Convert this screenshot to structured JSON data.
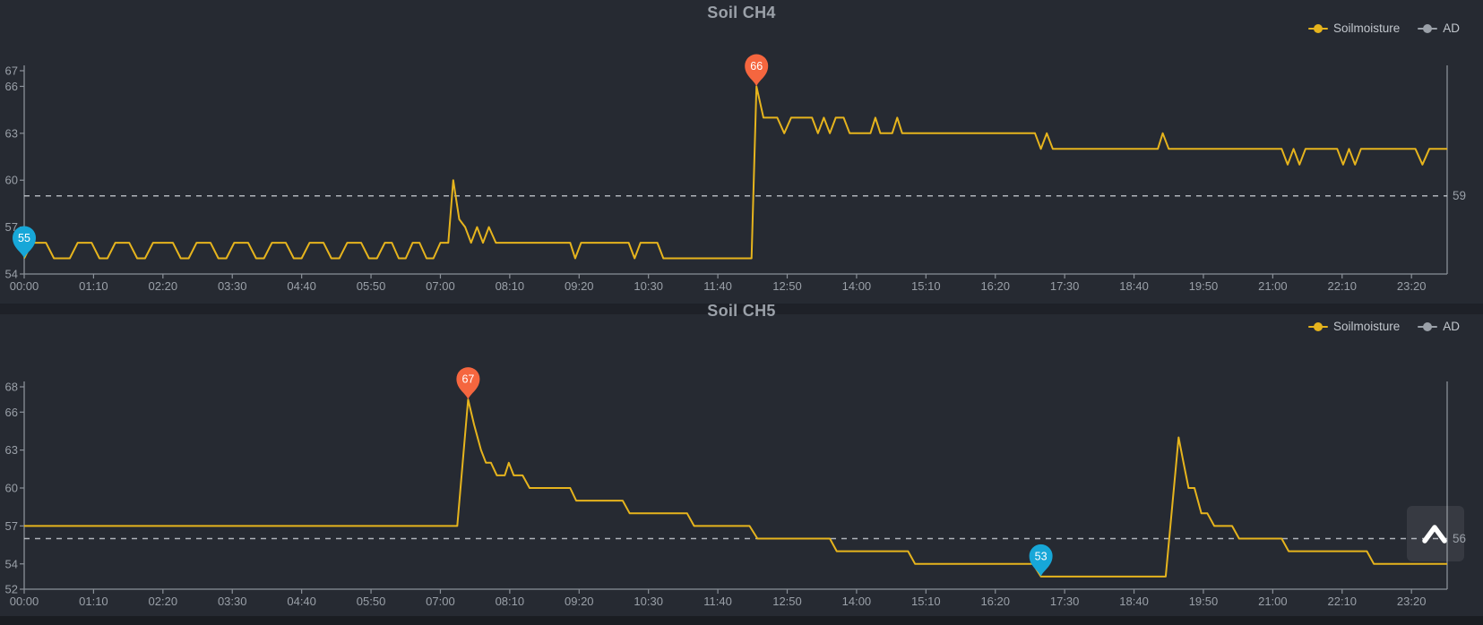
{
  "page": {
    "background": "#262a32",
    "gap_strip_color": "#1e2128",
    "bottom_bar_color": "#1a1d22"
  },
  "legend": {
    "items": [
      {
        "label": "Soilmoisture",
        "color": "#e6b41d"
      },
      {
        "label": "AD",
        "color": "#9aa0a8"
      }
    ]
  },
  "colors": {
    "series_line": "#e6b41d",
    "axis_line": "#8a9098",
    "tick_label": "#9aa0a8",
    "average_line": "#c9cdd3",
    "max_pin": "#f5663f",
    "min_pin": "#17a7d8",
    "pin_text": "#ffffff",
    "button_chevron": "#ffffff"
  },
  "scroll_top_button": {
    "icon": "chevron-up"
  },
  "chart_data": [
    {
      "type": "line",
      "title": "Soil CH4",
      "series_name": "Soilmoisture",
      "secondary_series_name": "AD",
      "y_ticks": [
        67,
        66,
        63,
        60,
        57,
        54
      ],
      "y_min": 54,
      "y_max": 67,
      "x_tick_labels": [
        "00:00",
        "01:10",
        "02:20",
        "03:30",
        "04:40",
        "05:50",
        "07:00",
        "08:10",
        "09:20",
        "10:30",
        "11:40",
        "12:50",
        "14:00",
        "15:10",
        "16:20",
        "17:30",
        "18:40",
        "19:50",
        "21:00",
        "22:10",
        "23:20"
      ],
      "x_tick_interval_minutes": 70,
      "average_line": {
        "value": 59,
        "label": "59"
      },
      "max_marker": {
        "minute": 739,
        "value": 66,
        "label": "66"
      },
      "min_marker": {
        "minute": 0,
        "value": 55,
        "label": "55"
      },
      "series_minutes_values": [
        [
          0,
          55
        ],
        [
          8,
          56
        ],
        [
          22,
          56
        ],
        [
          30,
          55
        ],
        [
          46,
          55
        ],
        [
          54,
          56
        ],
        [
          68,
          56
        ],
        [
          76,
          55
        ],
        [
          84,
          55
        ],
        [
          92,
          56
        ],
        [
          106,
          56
        ],
        [
          114,
          55
        ],
        [
          122,
          55
        ],
        [
          130,
          56
        ],
        [
          150,
          56
        ],
        [
          158,
          55
        ],
        [
          166,
          55
        ],
        [
          174,
          56
        ],
        [
          188,
          56
        ],
        [
          196,
          55
        ],
        [
          204,
          55
        ],
        [
          212,
          56
        ],
        [
          226,
          56
        ],
        [
          234,
          55
        ],
        [
          242,
          55
        ],
        [
          250,
          56
        ],
        [
          264,
          56
        ],
        [
          272,
          55
        ],
        [
          280,
          55
        ],
        [
          288,
          56
        ],
        [
          302,
          56
        ],
        [
          310,
          55
        ],
        [
          318,
          55
        ],
        [
          326,
          56
        ],
        [
          340,
          56
        ],
        [
          348,
          55
        ],
        [
          356,
          55
        ],
        [
          364,
          56
        ],
        [
          371,
          56
        ],
        [
          378,
          55
        ],
        [
          385,
          55
        ],
        [
          392,
          56
        ],
        [
          399,
          56
        ],
        [
          406,
          55
        ],
        [
          413,
          55
        ],
        [
          420,
          56
        ],
        [
          428,
          56
        ],
        [
          433,
          60
        ],
        [
          439,
          57.5
        ],
        [
          445,
          57
        ],
        [
          451,
          56
        ],
        [
          457,
          57
        ],
        [
          463,
          56
        ],
        [
          469,
          57
        ],
        [
          476,
          56
        ],
        [
          551,
          56
        ],
        [
          556,
          55
        ],
        [
          562,
          56
        ],
        [
          610,
          56
        ],
        [
          616,
          55
        ],
        [
          622,
          56
        ],
        [
          639,
          56
        ],
        [
          645,
          55
        ],
        [
          734,
          55
        ],
        [
          739,
          66
        ],
        [
          746,
          64
        ],
        [
          760,
          64
        ],
        [
          767,
          63
        ],
        [
          774,
          64
        ],
        [
          795,
          64
        ],
        [
          801,
          63
        ],
        [
          807,
          64
        ],
        [
          813,
          63
        ],
        [
          819,
          64
        ],
        [
          827,
          64
        ],
        [
          833,
          63
        ],
        [
          854,
          63
        ],
        [
          859,
          64
        ],
        [
          864,
          63
        ],
        [
          876,
          63
        ],
        [
          881,
          64
        ],
        [
          886,
          63
        ],
        [
          1020,
          63
        ],
        [
          1026,
          62
        ],
        [
          1032,
          63
        ],
        [
          1038,
          62
        ],
        [
          1144,
          62
        ],
        [
          1149,
          63
        ],
        [
          1155,
          62
        ],
        [
          1269,
          62
        ],
        [
          1275,
          61
        ],
        [
          1281,
          62
        ],
        [
          1287,
          61
        ],
        [
          1293,
          62
        ],
        [
          1325,
          62
        ],
        [
          1331,
          61
        ],
        [
          1337,
          62
        ],
        [
          1343,
          61
        ],
        [
          1349,
          62
        ],
        [
          1404,
          62
        ],
        [
          1411,
          61
        ],
        [
          1418,
          62
        ],
        [
          1436,
          62
        ]
      ]
    },
    {
      "type": "line",
      "title": "Soil CH5",
      "series_name": "Soilmoisture",
      "secondary_series_name": "AD",
      "y_ticks": [
        68,
        66,
        63,
        60,
        57,
        54,
        52
      ],
      "y_min": 52,
      "y_max": 68,
      "x_tick_labels": [
        "00:00",
        "01:10",
        "02:20",
        "03:30",
        "04:40",
        "05:50",
        "07:00",
        "08:10",
        "09:20",
        "10:30",
        "11:40",
        "12:50",
        "14:00",
        "15:10",
        "16:20",
        "17:30",
        "18:40",
        "19:50",
        "21:00",
        "22:10",
        "23:20"
      ],
      "x_tick_interval_minutes": 70,
      "average_line": {
        "value": 56,
        "label": "56"
      },
      "max_marker": {
        "minute": 448,
        "value": 67,
        "label": "67"
      },
      "min_marker": {
        "minute": 1026,
        "value": 53,
        "label": "53"
      },
      "series_minutes_values": [
        [
          0,
          57
        ],
        [
          437,
          57
        ],
        [
          448,
          67
        ],
        [
          454,
          65
        ],
        [
          461,
          63
        ],
        [
          466,
          62
        ],
        [
          471,
          62
        ],
        [
          477,
          61
        ],
        [
          485,
          61
        ],
        [
          489,
          62
        ],
        [
          494,
          61
        ],
        [
          503,
          61
        ],
        [
          510,
          60
        ],
        [
          551,
          60
        ],
        [
          557,
          59
        ],
        [
          604,
          59
        ],
        [
          611,
          58
        ],
        [
          669,
          58
        ],
        [
          676,
          57
        ],
        [
          732,
          57
        ],
        [
          740,
          56
        ],
        [
          813,
          56
        ],
        [
          820,
          55
        ],
        [
          892,
          55
        ],
        [
          899,
          54
        ],
        [
          1018,
          54
        ],
        [
          1026,
          53
        ],
        [
          1152,
          53
        ],
        [
          1165,
          64
        ],
        [
          1170,
          62
        ],
        [
          1175,
          60
        ],
        [
          1181,
          60
        ],
        [
          1188,
          58
        ],
        [
          1194,
          58
        ],
        [
          1201,
          57
        ],
        [
          1219,
          57
        ],
        [
          1226,
          56
        ],
        [
          1269,
          56
        ],
        [
          1276,
          55
        ],
        [
          1355,
          55
        ],
        [
          1362,
          54
        ],
        [
          1436,
          54
        ]
      ]
    }
  ]
}
